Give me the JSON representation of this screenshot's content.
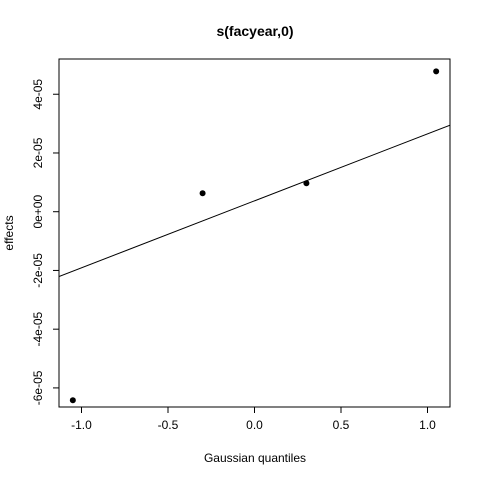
{
  "chart_data": {
    "type": "scatter",
    "title": "s(facyear,0)",
    "xlabel": "Gaussian quantiles",
    "ylabel": "effects",
    "xlim": [
      -1.13,
      1.13
    ],
    "ylim": [
      -6.65e-05,
      5.2e-05
    ],
    "x_ticks": [
      {
        "value": -1.0,
        "label": "-1.0"
      },
      {
        "value": -0.5,
        "label": "-0.5"
      },
      {
        "value": 0.0,
        "label": "0.0"
      },
      {
        "value": 0.5,
        "label": "0.5"
      },
      {
        "value": 1.0,
        "label": "1.0"
      }
    ],
    "y_ticks": [
      {
        "value": -6e-05,
        "label": "-6e-05"
      },
      {
        "value": -4e-05,
        "label": "-4e-05"
      },
      {
        "value": -2e-05,
        "label": "-2e-05"
      },
      {
        "value": 0.0,
        "label": "0e+00"
      },
      {
        "value": 2e-05,
        "label": "2e-05"
      },
      {
        "value": 4e-05,
        "label": "4e-05"
      }
    ],
    "points": [
      {
        "x": -1.05,
        "y": -6.42e-05
      },
      {
        "x": -0.3,
        "y": 6.3e-06
      },
      {
        "x": 0.3,
        "y": 9.7e-06
      },
      {
        "x": 1.05,
        "y": 4.78e-05
      }
    ],
    "reference_line": {
      "intercept": 3.7e-06,
      "slope": 2.28e-05
    },
    "grid": false,
    "legend": "none"
  }
}
